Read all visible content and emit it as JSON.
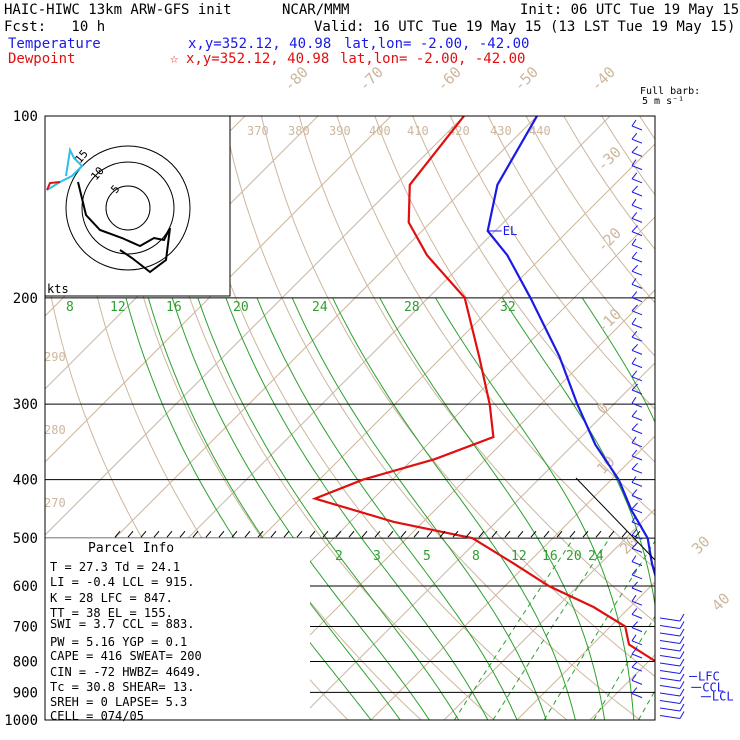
{
  "header": {
    "model": "HAIC-HIWC 13km ARW-GFS init",
    "org": "NCAR/MMM",
    "init": "Init: 06 UTC Tue 19 May 15",
    "fcst": "Fcst:   10 h",
    "valid": "Valid: 16 UTC Tue 19 May 15 (13 LST Tue 19 May 15)",
    "temp_label": "Temperature",
    "temp_loc": "x,y=352.12, 40.98",
    "temp_latlon": "lat,lon= -2.00, -42.00",
    "dew_label": "Dewpoint",
    "dew_marker": "☆",
    "dew_loc": "x,y=352.12, 40.98",
    "dew_latlon": "lat,lon= -2.00, -42.00"
  },
  "barb_legend": {
    "line1": "Full barb:",
    "line2": "5 m s⁻¹"
  },
  "hodograph": {
    "units": "kts",
    "rings": [
      "5",
      "10",
      "15"
    ]
  },
  "parcel": {
    "title": "Parcel Info",
    "rows": [
      "T   =   27.3  Td =  24.1",
      "LI  =   -0.4  LCL =  915.",
      "K   =    28  LFC =  847.",
      "TT  =    38  EL  =  155.",
      "SWI =    3.7  CCL =  883.",
      "PW  =   5.16  YGP =   0.1",
      "CAPE =   416  SWEAT=  200",
      "CIN  =   -72  HWBZ= 4649.",
      "Tc  =   30.8  SHEAR=  13.",
      "SREH =     0  LAPSE=   5.3",
      "CELL = 074/05"
    ]
  },
  "levels": {
    "el": "EL",
    "lfc": "LFC",
    "ccl": "CCL",
    "lcl": "LCL"
  },
  "colors": {
    "temperature": "#1a1ae6",
    "dewpoint": "#e01010",
    "dry_adiabat": "#cdb79e",
    "mixing_ratio": "#2ea02e",
    "isotherm": "#cdb79e"
  },
  "chart_data": {
    "type": "line",
    "title": "",
    "ylabel": "",
    "xlabel": "",
    "y_scale": "log-pressure",
    "pressure_ticks": [
      "100",
      "200",
      "300",
      "400",
      "500",
      "600",
      "700",
      "800",
      "900",
      "1000"
    ],
    "isotherm_labels": [
      "-80",
      "-70",
      "-60",
      "-50",
      "-40",
      "-30",
      "-20",
      "-10",
      "0",
      "10",
      "20",
      "30",
      "40"
    ],
    "theta_labels": [
      "370",
      "380",
      "390",
      "400",
      "410",
      "420",
      "430",
      "440",
      "290",
      "280",
      "270"
    ],
    "mixing_ratio_labels_top": [
      "8",
      "12",
      "16",
      "20",
      "24",
      "28",
      "32"
    ],
    "mixing_ratio_labels_low": [
      "2",
      "3",
      "5",
      "8",
      "12",
      "16",
      "20",
      "24"
    ],
    "series": [
      {
        "name": "Temperature",
        "color": "#1a1ae6",
        "points": [
          [
            1000,
            28.5
          ],
          [
            970,
            25.5
          ],
          [
            940,
            23.5
          ],
          [
            915,
            22
          ],
          [
            880,
            20
          ],
          [
            850,
            18
          ],
          [
            800,
            15
          ],
          [
            750,
            11
          ],
          [
            700,
            8
          ],
          [
            650,
            4
          ],
          [
            600,
            1
          ],
          [
            550,
            -3
          ],
          [
            500,
            -7
          ],
          [
            450,
            -13
          ],
          [
            400,
            -19
          ],
          [
            350,
            -27
          ],
          [
            300,
            -35
          ],
          [
            250,
            -44
          ],
          [
            200,
            -56
          ],
          [
            170,
            -65
          ],
          [
            155,
            -71
          ],
          [
            130,
            -76
          ],
          [
            100,
            -80
          ]
        ]
      },
      {
        "name": "Dewpoint",
        "color": "#e01010",
        "points": [
          [
            1000,
            24.5
          ],
          [
            970,
            23
          ],
          [
            940,
            22
          ],
          [
            915,
            21.5
          ],
          [
            880,
            18
          ],
          [
            850,
            14.5
          ],
          [
            800,
            11
          ],
          [
            750,
            5
          ],
          [
            700,
            2
          ],
          [
            650,
            -5
          ],
          [
            600,
            -14
          ],
          [
            550,
            -22
          ],
          [
            500,
            -31
          ],
          [
            470,
            -44
          ],
          [
            430,
            -58
          ],
          [
            400,
            -54
          ],
          [
            370,
            -47
          ],
          [
            340,
            -42
          ],
          [
            300,
            -47
          ],
          [
            250,
            -55
          ],
          [
            200,
            -65
          ],
          [
            170,
            -76
          ],
          [
            150,
            -83
          ],
          [
            130,
            -88
          ],
          [
            100,
            -90
          ]
        ]
      }
    ]
  }
}
